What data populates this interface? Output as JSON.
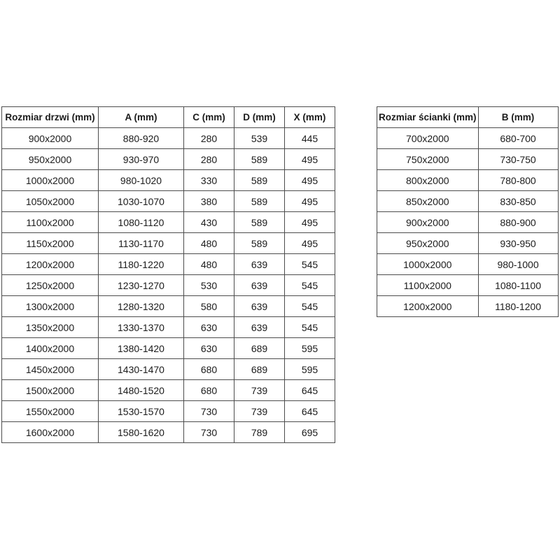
{
  "page": {
    "background_color": "#ffffff",
    "border_color": "#4d4d4d",
    "text_color": "#1b1b1b"
  },
  "door_table": {
    "headers": [
      "Rozmiar drzwi (mm)",
      "A (mm)",
      "C (mm)",
      "D (mm)",
      "X (mm)"
    ],
    "rows": [
      [
        "900x2000",
        "880-920",
        "280",
        "539",
        "445"
      ],
      [
        "950x2000",
        "930-970",
        "280",
        "589",
        "495"
      ],
      [
        "1000x2000",
        "980-1020",
        "330",
        "589",
        "495"
      ],
      [
        "1050x2000",
        "1030-1070",
        "380",
        "589",
        "495"
      ],
      [
        "1100x2000",
        "1080-1120",
        "430",
        "589",
        "495"
      ],
      [
        "1150x2000",
        "1130-1170",
        "480",
        "589",
        "495"
      ],
      [
        "1200x2000",
        "1180-1220",
        "480",
        "639",
        "545"
      ],
      [
        "1250x2000",
        "1230-1270",
        "530",
        "639",
        "545"
      ],
      [
        "1300x2000",
        "1280-1320",
        "580",
        "639",
        "545"
      ],
      [
        "1350x2000",
        "1330-1370",
        "630",
        "639",
        "545"
      ],
      [
        "1400x2000",
        "1380-1420",
        "630",
        "689",
        "595"
      ],
      [
        "1450x2000",
        "1430-1470",
        "680",
        "689",
        "595"
      ],
      [
        "1500x2000",
        "1480-1520",
        "680",
        "739",
        "645"
      ],
      [
        "1550x2000",
        "1530-1570",
        "730",
        "739",
        "645"
      ],
      [
        "1600x2000",
        "1580-1620",
        "730",
        "789",
        "695"
      ]
    ]
  },
  "wall_table": {
    "headers": [
      "Rozmiar ścianki (mm)",
      "B (mm)"
    ],
    "rows": [
      [
        "700x2000",
        "680-700"
      ],
      [
        "750x2000",
        "730-750"
      ],
      [
        "800x2000",
        "780-800"
      ],
      [
        "850x2000",
        "830-850"
      ],
      [
        "900x2000",
        "880-900"
      ],
      [
        "950x2000",
        "930-950"
      ],
      [
        "1000x2000",
        "980-1000"
      ],
      [
        "1100x2000",
        "1080-1100"
      ],
      [
        "1200x2000",
        "1180-1200"
      ]
    ]
  }
}
